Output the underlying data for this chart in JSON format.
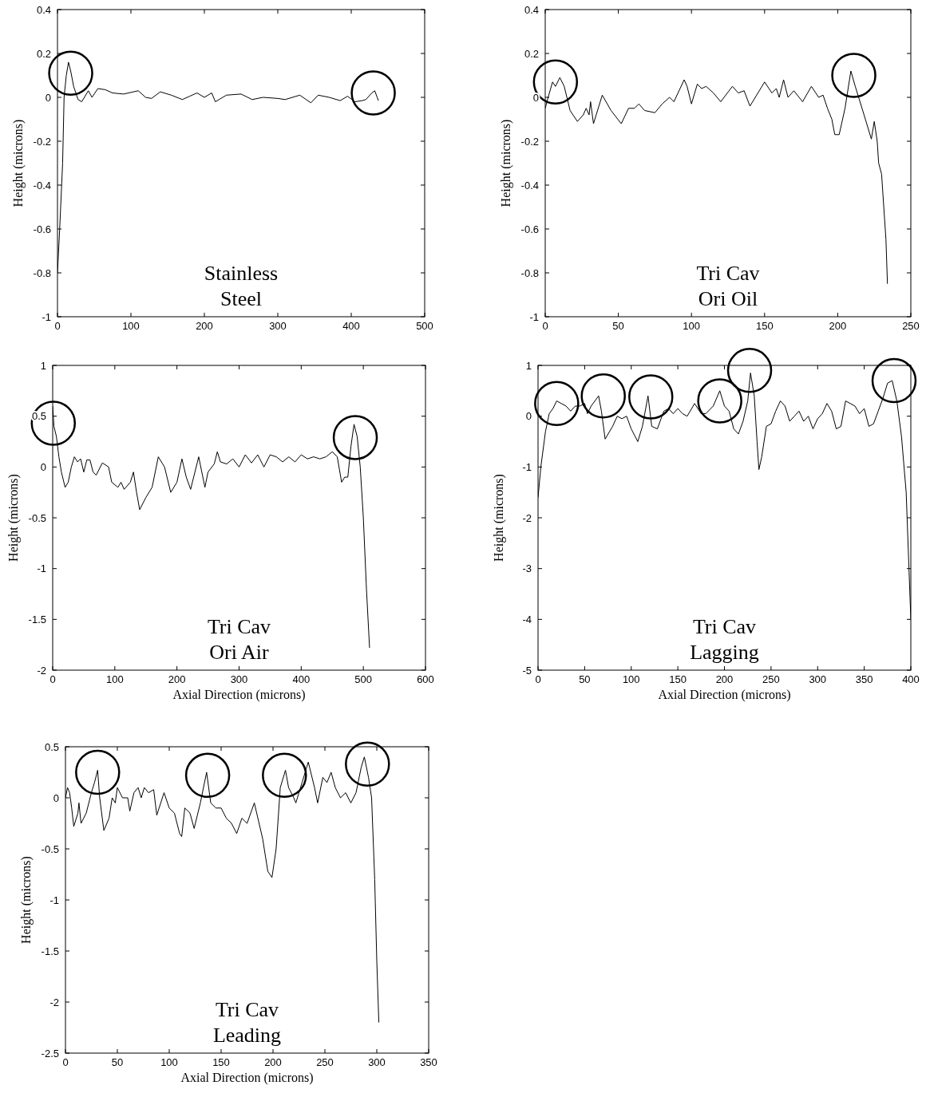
{
  "chart_data": [
    {
      "type": "line",
      "ylabel": "Height (microns)",
      "annotations": [
        "Stainless\nSteel"
      ],
      "xlim": [
        0,
        500
      ],
      "xticks": [
        0,
        100,
        200,
        300,
        400,
        500
      ],
      "ylim": [
        -1,
        0.4
      ],
      "yticks": [
        -1,
        -0.8,
        -0.6,
        -0.4,
        -0.2,
        0,
        0.2,
        0.4
      ],
      "series": [
        {
          "color": "#000000",
          "x": [
            0,
            3,
            7,
            9,
            12,
            15,
            18,
            22,
            28,
            33,
            42,
            47,
            55,
            65,
            75,
            90,
            110,
            120,
            128,
            140,
            155,
            170,
            180,
            190,
            200,
            210,
            215,
            230,
            250,
            265,
            280,
            300,
            310,
            330,
            345,
            355,
            370,
            385,
            395,
            405,
            415,
            420,
            428,
            432,
            437
          ],
          "values": [
            -0.8,
            -0.6,
            -0.3,
            0,
            0.1,
            0.16,
            0.12,
            0.05,
            -0.01,
            -0.02,
            0.03,
            0,
            0.04,
            0.035,
            0.02,
            0.015,
            0.03,
            0,
            -0.005,
            0.025,
            0.01,
            -0.01,
            0.005,
            0.02,
            0,
            0.02,
            -0.02,
            0.01,
            0.015,
            -0.01,
            0,
            -0.005,
            -0.01,
            0.01,
            -0.025,
            0.01,
            0,
            -0.015,
            0.005,
            -0.02,
            -0.015,
            -0.01,
            0.02,
            0.03,
            -0.015
          ]
        }
      ]
    },
    {
      "type": "line",
      "ylabel": "Height (microns)",
      "annotations": [
        "Tri Cav\nOri Oil"
      ],
      "xlim": [
        0,
        250
      ],
      "xticks": [
        0,
        50,
        100,
        150,
        200,
        250
      ],
      "ylim": [
        -1,
        0.4
      ],
      "yticks": [
        -1,
        -0.8,
        -0.6,
        -0.4,
        -0.2,
        0,
        0.2,
        0.4
      ],
      "series": [
        {
          "color": "#000000",
          "x": [
            0,
            2,
            5,
            7,
            10,
            13,
            17,
            22,
            26,
            28,
            30,
            31,
            33,
            39,
            45,
            52,
            57,
            61,
            64,
            68,
            75,
            80,
            85,
            88,
            95,
            97,
            100,
            104,
            107,
            110,
            115,
            120,
            128,
            132,
            136,
            140,
            150,
            155,
            158,
            160,
            163,
            166,
            170,
            176,
            182,
            187,
            190,
            193,
            196,
            198,
            201,
            205,
            209,
            212,
            218,
            223,
            225,
            227,
            228,
            230,
            233,
            234
          ],
          "values": [
            -0.05,
            0,
            0.07,
            0.05,
            0.09,
            0.05,
            -0.06,
            -0.11,
            -0.08,
            -0.05,
            -0.08,
            -0.02,
            -0.12,
            0.01,
            -0.06,
            -0.12,
            -0.05,
            -0.05,
            -0.03,
            -0.06,
            -0.07,
            -0.03,
            0,
            -0.02,
            0.08,
            0.05,
            -0.03,
            0.06,
            0.04,
            0.05,
            0.02,
            -0.02,
            0.05,
            0.02,
            0.03,
            -0.04,
            0.07,
            0.02,
            0.04,
            0,
            0.08,
            0,
            0.03,
            -0.02,
            0.05,
            0,
            0.01,
            -0.05,
            -0.1,
            -0.17,
            -0.17,
            -0.05,
            0.12,
            0.05,
            -0.08,
            -0.19,
            -0.11,
            -0.2,
            -0.3,
            -0.35,
            -0.65,
            -0.85
          ]
        }
      ]
    },
    {
      "type": "line",
      "xlabel": "Axial Direction (microns)",
      "ylabel": "Height (microns)",
      "annotations": [
        "Tri Cav\nOri Air"
      ],
      "xlim": [
        0,
        600
      ],
      "xticks": [
        0,
        100,
        200,
        300,
        400,
        500,
        600
      ],
      "ylim": [
        -2,
        1
      ],
      "yticks": [
        -2,
        -1.5,
        -1,
        -0.5,
        0,
        0.5,
        1
      ],
      "series": [
        {
          "color": "#000000",
          "x": [
            0,
            2,
            6,
            10,
            14,
            20,
            25,
            30,
            35,
            40,
            45,
            50,
            55,
            60,
            65,
            70,
            80,
            90,
            95,
            105,
            110,
            115,
            125,
            130,
            135,
            140,
            150,
            160,
            170,
            180,
            190,
            200,
            208,
            215,
            222,
            235,
            245,
            250,
            260,
            265,
            270,
            280,
            290,
            300,
            310,
            320,
            330,
            340,
            350,
            360,
            370,
            380,
            390,
            400,
            410,
            420,
            430,
            440,
            450,
            458,
            465,
            470,
            475,
            480,
            485,
            490,
            495,
            500,
            505,
            510
          ],
          "values": [
            0.6,
            0.4,
            0.3,
            0.1,
            -0.05,
            -0.2,
            -0.15,
            0,
            0.1,
            0.05,
            0.08,
            -0.05,
            0.07,
            0.07,
            -0.05,
            -0.08,
            0.04,
            0,
            -0.15,
            -0.2,
            -0.15,
            -0.22,
            -0.15,
            -0.05,
            -0.25,
            -0.42,
            -0.3,
            -0.2,
            0.1,
            0,
            -0.25,
            -0.15,
            0.08,
            -0.1,
            -0.22,
            0.1,
            -0.2,
            -0.05,
            0.03,
            0.15,
            0.05,
            0.03,
            0.08,
            0,
            0.12,
            0.04,
            0.12,
            0,
            0.12,
            0.1,
            0.05,
            0.1,
            0.05,
            0.12,
            0.08,
            0.1,
            0.08,
            0.1,
            0.15,
            0.1,
            -0.15,
            -0.1,
            -0.1,
            0.2,
            0.42,
            0.3,
            0,
            -0.5,
            -1.2,
            -1.78
          ]
        }
      ]
    },
    {
      "type": "line",
      "xlabel": "Axial Direction (microns)",
      "ylabel": "Height (microns)",
      "annotations": [
        "Tri Cav\nLagging"
      ],
      "xlim": [
        0,
        400
      ],
      "xticks": [
        0,
        50,
        100,
        150,
        200,
        250,
        300,
        350,
        400
      ],
      "ylim": [
        -5,
        1
      ],
      "yticks": [
        -5,
        -4,
        -3,
        -2,
        -1,
        0,
        1
      ],
      "series": [
        {
          "color": "#000000",
          "x": [
            0,
            3,
            8,
            12,
            16,
            20,
            25,
            30,
            35,
            40,
            45,
            50,
            53,
            57,
            65,
            68,
            72,
            80,
            85,
            90,
            95,
            100,
            107,
            112,
            118,
            122,
            128,
            135,
            140,
            145,
            150,
            155,
            160,
            168,
            175,
            180,
            188,
            195,
            200,
            205,
            210,
            215,
            220,
            225,
            228,
            232,
            235,
            237,
            240,
            245,
            250,
            255,
            260,
            265,
            270,
            275,
            280,
            285,
            290,
            295,
            300,
            305,
            310,
            315,
            320,
            325,
            330,
            335,
            340,
            345,
            350,
            355,
            360,
            365,
            370,
            375,
            380,
            385,
            390,
            395,
            398,
            400
          ],
          "values": [
            -1.6,
            -1,
            -0.3,
            0.05,
            0.15,
            0.3,
            0.25,
            0.2,
            0.1,
            0.2,
            0.2,
            0.25,
            0.05,
            0.2,
            0.4,
            0.1,
            -0.45,
            -0.2,
            0,
            -0.05,
            0,
            -0.25,
            -0.5,
            -0.2,
            0.4,
            -0.2,
            -0.25,
            0.1,
            0.15,
            0.05,
            0.15,
            0.05,
            0,
            0.25,
            0.05,
            0.05,
            0.2,
            0.5,
            0.2,
            0.1,
            -0.25,
            -0.35,
            -0.1,
            0.3,
            0.85,
            0.4,
            -0.5,
            -1.05,
            -0.8,
            -0.2,
            -0.15,
            0.1,
            0.3,
            0.2,
            -0.1,
            0,
            0.1,
            -0.1,
            0,
            -0.25,
            -0.05,
            0.05,
            0.25,
            0.1,
            -0.25,
            -0.2,
            0.3,
            0.25,
            0.2,
            0.05,
            0.15,
            -0.2,
            -0.15,
            0.1,
            0.35,
            0.65,
            0.7,
            0.3,
            -0.4,
            -1.5,
            -3,
            -4
          ]
        }
      ]
    },
    {
      "type": "line",
      "xlabel": "Axial Direction (microns)",
      "ylabel": "Height (microns)",
      "annotations": [
        "Tri Cav\nLeading"
      ],
      "xlim": [
        0,
        350
      ],
      "xticks": [
        0,
        50,
        100,
        150,
        200,
        250,
        300,
        350
      ],
      "ylim": [
        -2.5,
        0.5
      ],
      "yticks": [
        -2.5,
        -2,
        -1.5,
        -1,
        -0.5,
        0,
        0.5
      ],
      "series": [
        {
          "color": "#000000",
          "x": [
            0,
            2,
            4,
            6,
            8,
            12,
            13,
            15,
            20,
            25,
            28,
            31,
            33,
            37,
            42,
            45,
            48,
            50,
            55,
            60,
            62,
            66,
            70,
            73,
            76,
            80,
            85,
            88,
            95,
            100,
            105,
            110,
            112,
            115,
            120,
            124,
            130,
            136,
            140,
            145,
            150,
            155,
            160,
            165,
            170,
            175,
            182,
            190,
            195,
            199,
            203,
            207,
            212,
            215,
            220,
            222,
            228,
            234,
            240,
            243,
            248,
            252,
            256,
            260,
            265,
            270,
            275,
            280,
            285,
            288,
            292,
            295,
            298,
            300,
            302
          ],
          "values": [
            0,
            0.1,
            0.05,
            -0.1,
            -0.28,
            -0.15,
            -0.05,
            -0.25,
            -0.15,
            0.05,
            0.15,
            0.27,
            0,
            -0.32,
            -0.2,
            0,
            -0.05,
            0.1,
            0,
            0,
            -0.13,
            0.05,
            0.1,
            0,
            0.1,
            0.05,
            0.08,
            -0.17,
            0.05,
            -0.1,
            -0.15,
            -0.35,
            -0.38,
            -0.1,
            -0.15,
            -0.3,
            -0.05,
            0.25,
            -0.05,
            -0.1,
            -0.1,
            -0.2,
            -0.25,
            -0.35,
            -0.2,
            -0.25,
            -0.05,
            -0.4,
            -0.72,
            -0.78,
            -0.5,
            0.1,
            0.27,
            0.1,
            0,
            -0.05,
            0.15,
            0.35,
            0.1,
            -0.05,
            0.2,
            0.15,
            0.25,
            0.1,
            0,
            0.05,
            -0.05,
            0.05,
            0.3,
            0.4,
            0.2,
            0,
            -0.8,
            -1.6,
            -2.2
          ]
        }
      ]
    }
  ]
}
